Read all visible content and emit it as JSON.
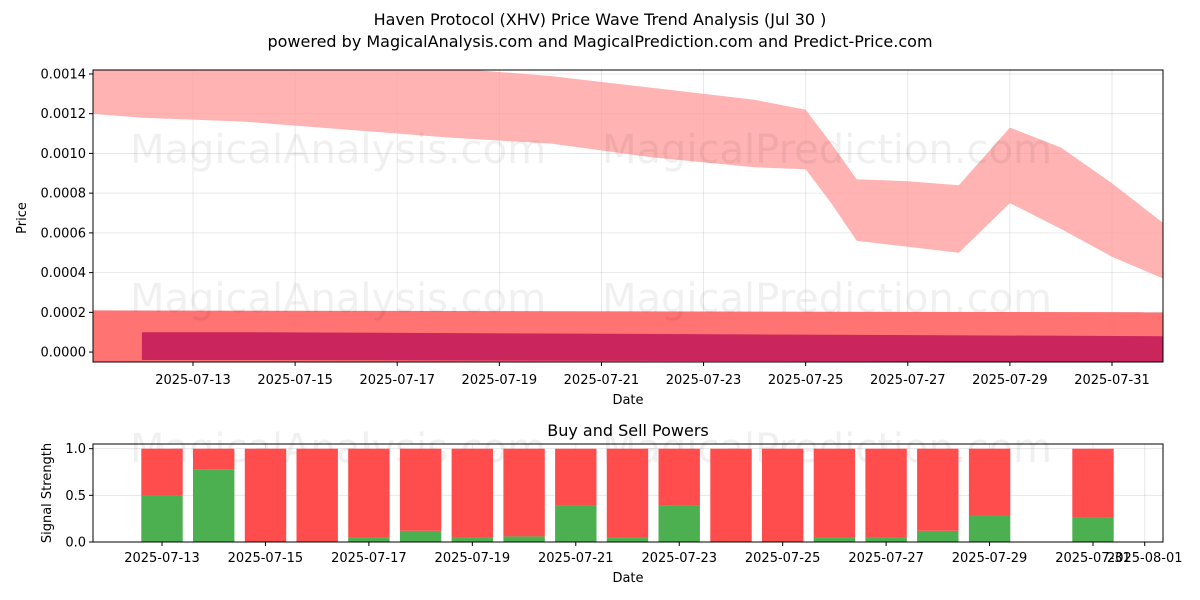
{
  "header": {
    "title": "Haven Protocol (XHV) Price Wave Trend Analysis (Jul 30 )",
    "subtitle": "powered by MagicalAnalysis.com and MagicalPrediction.com and Predict-Price.com"
  },
  "watermarks": [
    "MagicalAnalysis.com",
    "MagicalPrediction.com"
  ],
  "colors": {
    "upper_band": "#ff9999",
    "lower_outer_band": "#ff6b6b",
    "lower_inner_band": "#c2185b",
    "buy": "#4caf50",
    "sell": "#ff4c4c"
  },
  "chart_data": [
    {
      "type": "area",
      "xlabel": "Date",
      "ylabel": "Price",
      "ylim": [
        -5e-05,
        0.00142
      ],
      "x_ticks": [
        "2025-07-13",
        "2025-07-15",
        "2025-07-17",
        "2025-07-19",
        "2025-07-21",
        "2025-07-23",
        "2025-07-25",
        "2025-07-27",
        "2025-07-29",
        "2025-07-31"
      ],
      "y_ticks": [
        "0.0000",
        "0.0002",
        "0.0004",
        "0.0006",
        "0.0008",
        "0.0010",
        "0.0012",
        "0.0014"
      ],
      "grid": true,
      "series": [
        {
          "x": [
            "2025-07-11",
            "2025-07-12",
            "2025-07-14",
            "2025-07-16",
            "2025-07-18",
            "2025-07-20",
            "2025-07-22",
            "2025-07-24",
            "2025-07-25",
            "2025-07-25T12:00",
            "2025-07-26",
            "2025-07-27",
            "2025-07-28",
            "2025-07-29",
            "2025-07-30",
            "2025-07-31",
            "2025-08-01"
          ],
          "upper": [
            0.00145,
            0.00145,
            0.00145,
            0.00145,
            0.00143,
            0.00139,
            0.00133,
            0.00127,
            0.00122,
            0.00105,
            0.00087,
            0.00086,
            0.00084,
            0.00113,
            0.00103,
            0.00085,
            0.00065
          ],
          "lower": [
            0.0012,
            0.00118,
            0.00116,
            0.00112,
            0.00108,
            0.00105,
            0.00098,
            0.00093,
            0.00092,
            0.00075,
            0.00056,
            0.00053,
            0.0005,
            0.00075,
            0.00062,
            0.00048,
            0.00037
          ]
        },
        {
          "x": [
            "2025-07-11",
            "2025-08-01"
          ],
          "upper": [
            0.00021,
            0.0002
          ],
          "lower": [
            -5e-05,
            -5e-05
          ]
        },
        {
          "x": [
            "2025-07-12",
            "2025-07-14",
            "2025-08-01"
          ],
          "upper": [
            0.0001,
            0.0001,
            8e-05
          ],
          "lower": [
            -4e-05,
            -4e-05,
            -5e-05
          ]
        }
      ]
    },
    {
      "type": "bar",
      "title": "Buy and Sell Powers",
      "xlabel": "Date",
      "ylabel": "Signal Strength",
      "ylim": [
        0,
        1.05
      ],
      "x_ticks": [
        "2025-07-13",
        "2025-07-15",
        "2025-07-17",
        "2025-07-19",
        "2025-07-21",
        "2025-07-23",
        "2025-07-25",
        "2025-07-27",
        "2025-07-29",
        "2025-07-31",
        "2025-08-01"
      ],
      "y_ticks": [
        "0.0",
        "0.5",
        "1.0"
      ],
      "grid": true,
      "categories": [
        "2025-07-13",
        "2025-07-14",
        "2025-07-15",
        "2025-07-16",
        "2025-07-17",
        "2025-07-18",
        "2025-07-19",
        "2025-07-20",
        "2025-07-21",
        "2025-07-22",
        "2025-07-23",
        "2025-07-24",
        "2025-07-25",
        "2025-07-26",
        "2025-07-27",
        "2025-07-28",
        "2025-07-29",
        "2025-07-31"
      ],
      "series": [
        {
          "name": "Buy",
          "values": [
            0.5,
            0.78,
            0.0,
            0.0,
            0.05,
            0.12,
            0.05,
            0.06,
            0.39,
            0.05,
            0.39,
            0.0,
            0.0,
            0.05,
            0.05,
            0.12,
            0.29,
            0.26
          ]
        },
        {
          "name": "Sell",
          "values": [
            0.5,
            0.22,
            1.0,
            1.0,
            0.95,
            0.88,
            0.95,
            0.94,
            0.61,
            0.95,
            0.61,
            1.0,
            1.0,
            0.95,
            0.95,
            0.88,
            0.71,
            0.74
          ]
        }
      ]
    }
  ]
}
